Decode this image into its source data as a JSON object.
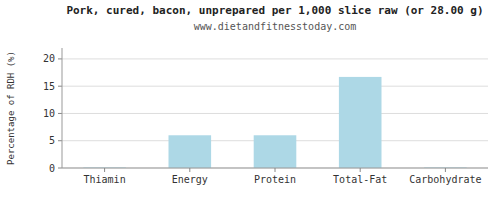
{
  "chart_data": {
    "type": "bar",
    "title": "Pork, cured, bacon, unprepared per 1,000 slice raw (or 28.00 g)",
    "subtitle": "www.dietandfitnesstoday.com",
    "categories": [
      "Thiamin",
      "Energy",
      "Protein",
      "Total-Fat",
      "Carbohydrate"
    ],
    "values": [
      0.1,
      6.0,
      6.0,
      16.7,
      0.1
    ],
    "color": "#add8e6",
    "ylabel": "Percentage of RDH (%)",
    "ylim": [
      0,
      22
    ],
    "yticks": [
      0,
      5,
      10,
      15,
      20
    ],
    "grid": true
  }
}
